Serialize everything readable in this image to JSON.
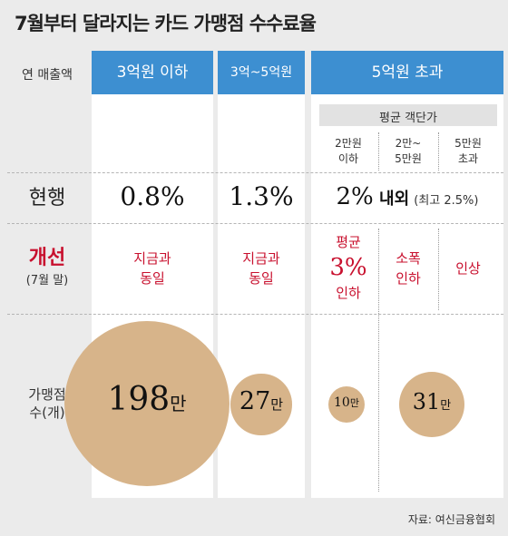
{
  "title": "7월부터 달라지는 카드 가맹점 수수료율",
  "source": "자료: 여신금융협회",
  "row_labels": {
    "sales": "연 매출액",
    "current": "현행",
    "improved": "개선",
    "improved_note": "(7월 말)",
    "count_line1": "가맹점",
    "count_line2": "수(개)"
  },
  "columns": {
    "c1_header": "3억원 이하",
    "c2_header": "3억~5억원",
    "c3_header": "5억원 초과",
    "avg_ticket": "평균 객단가",
    "sub1_l1": "2만원",
    "sub1_l2": "이하",
    "sub2_l1": "2만~",
    "sub2_l2": "5만원",
    "sub3_l1": "5만원",
    "sub3_l2": "초과"
  },
  "current": {
    "c1": "0.8%",
    "c2": "1.3%",
    "c3_value": "2%",
    "c3_suffix": " 내외",
    "c3_note": "(최고 2.5%)"
  },
  "improved": {
    "c1_l1": "지금과",
    "c1_l2": "동일",
    "c2_l1": "지금과",
    "c2_l2": "동일",
    "s1_l1": "평균",
    "s1_big": "3%",
    "s1_l3": "인하",
    "s2_l1": "소폭",
    "s2_l2": "인하",
    "s3": "인상"
  },
  "unit_man": "만",
  "colors": {
    "header_blue": "#3d8fd1",
    "bubble": "#d7b48a",
    "accent_red": "#c8102e",
    "background": "#ebebeb"
  },
  "chart_data": {
    "type": "bubble",
    "title": "7월부터 달라지는 카드 가맹점 수수료율",
    "series": [
      {
        "categories": [
          "3억원 이하",
          "3억~5억원",
          "5억원 초과 · 2만원 이하",
          "5억원 초과 · 2만~5만원"
        ],
        "values": [
          198,
          27,
          10,
          31
        ],
        "labels": [
          "198",
          "27",
          "10",
          "31"
        ]
      }
    ]
  }
}
